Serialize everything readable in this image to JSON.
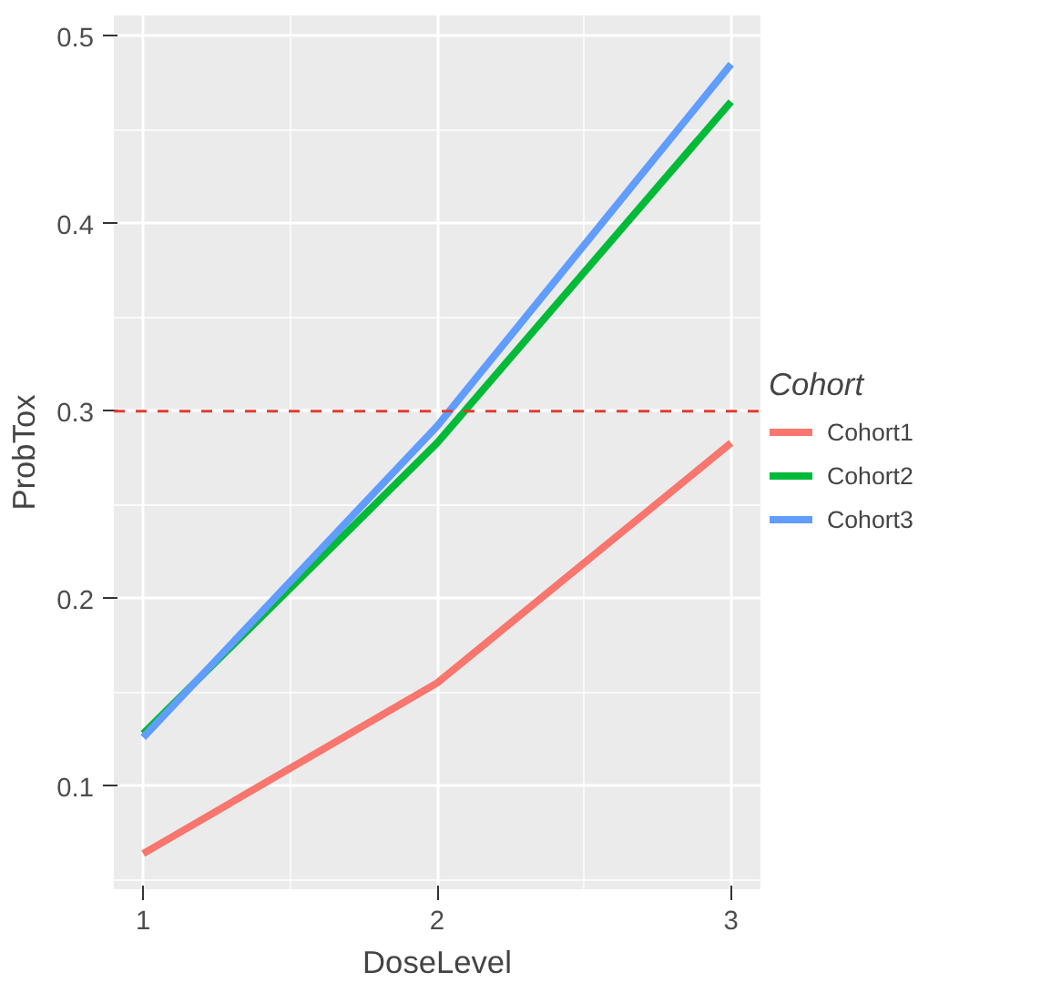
{
  "chart_data": {
    "type": "line",
    "xlabel": "DoseLevel",
    "ylabel": "ProbTox",
    "legend_title": "Cohort",
    "x": [
      1,
      2,
      3
    ],
    "series": [
      {
        "name": "Cohort1",
        "color": "#f8766d",
        "values": [
          0.064,
          0.155,
          0.283
        ]
      },
      {
        "name": "Cohort2",
        "color": "#00ba38",
        "values": [
          0.128,
          0.283,
          0.465
        ]
      },
      {
        "name": "Cohort3",
        "color": "#619cff",
        "values": [
          0.126,
          0.292,
          0.485
        ]
      }
    ],
    "xlim": [
      0.9,
      3.1
    ],
    "ylim": [
      0.045,
      0.511
    ],
    "xticks": [
      1,
      2,
      3
    ],
    "yticks": [
      0.1,
      0.2,
      0.3,
      0.4,
      0.5
    ],
    "ref_lines": [
      {
        "axis": "y",
        "value": 0.3,
        "color": "#e03c31",
        "line_style": "dashed"
      }
    ],
    "grid": true,
    "legend": "right",
    "line_style": "solid",
    "marker": "none"
  }
}
